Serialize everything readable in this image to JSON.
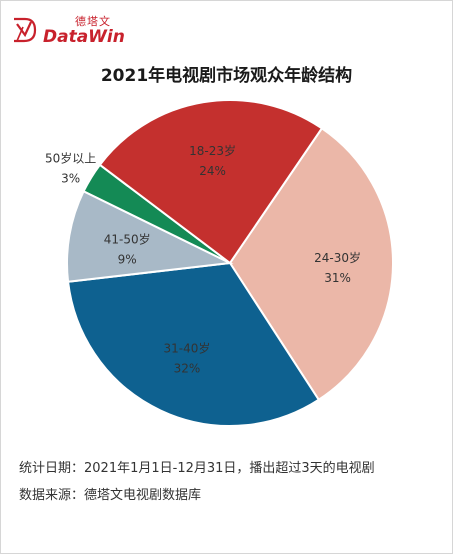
{
  "logo": {
    "cn": "德塔文",
    "en": "DataWin"
  },
  "chart_data": {
    "type": "pie",
    "title": "2021年电视剧市场观众年龄结构",
    "slices": [
      {
        "label": "24-30岁",
        "value": 31,
        "value_label": "31%",
        "color": "#ebb7a8"
      },
      {
        "label": "31-40岁",
        "value": 32,
        "value_label": "32%",
        "color": "#0e6190"
      },
      {
        "label": "41-50岁",
        "value": 9,
        "value_label": "9%",
        "color": "#a8b9c7"
      },
      {
        "label": "50岁以上",
        "value": 3,
        "value_label": "3%",
        "color": "#148a55"
      },
      {
        "label": "18-23岁",
        "value": 24,
        "value_label": "24%",
        "color": "#c4302e"
      }
    ]
  },
  "footnotes": {
    "period": "统计日期：2021年1月1日-12月31日，播出超过3天的电视剧",
    "source": "数据来源：德塔文电视剧数据库"
  }
}
